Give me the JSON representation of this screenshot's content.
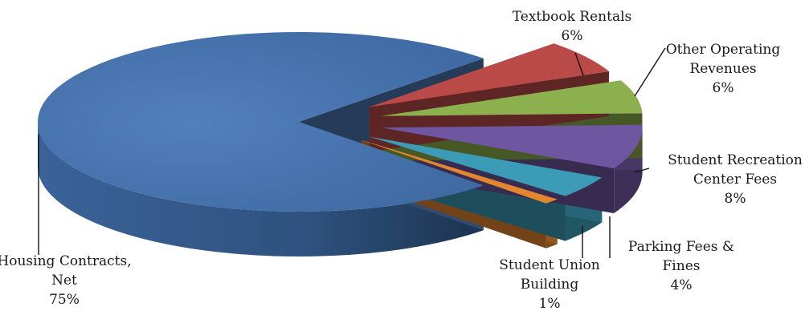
{
  "chart_data": {
    "type": "pie",
    "title": "",
    "legend": "none",
    "labels_position": "outside with leader lines",
    "slices": [
      {
        "label_lines": [
          "Housing Contracts,",
          "Net"
        ],
        "label": "Housing Contracts, Net",
        "value": 75,
        "value_label": "75%",
        "color": "#4a75ae",
        "exploded": false
      },
      {
        "label_lines": [
          "Textbook Rentals"
        ],
        "label": "Textbook Rentals",
        "value": 6,
        "value_label": "6%",
        "color": "#b94a48",
        "exploded": true
      },
      {
        "label_lines": [
          "Other Operating",
          "Revenues"
        ],
        "label": "Other Operating Revenues",
        "value": 6,
        "value_label": "6%",
        "color": "#8db04e",
        "exploded": true
      },
      {
        "label_lines": [
          "Student Recreation",
          "Center Fees"
        ],
        "label": "Student Recreation Center Fees",
        "value": 8,
        "value_label": "8%",
        "color": "#6f56a0",
        "exploded": true
      },
      {
        "label_lines": [
          "Parking Fees &",
          "Fines"
        ],
        "label": "Parking Fees & Fines",
        "value": 4,
        "value_label": "4%",
        "color": "#3c9cb8",
        "exploded": true
      },
      {
        "label_lines": [
          "Student Union",
          "Building"
        ],
        "label": "Student Union Building",
        "value": 1,
        "value_label": "1%",
        "color": "#e4852f",
        "exploded": true
      }
    ],
    "style": "3d-exploded"
  }
}
